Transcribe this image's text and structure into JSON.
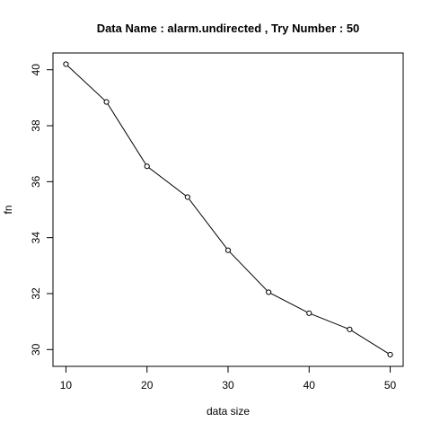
{
  "chart_data": {
    "type": "line",
    "title": "Data Name :  alarm.undirected , Try Number :  50",
    "xlabel": "data size",
    "ylabel": "fn",
    "x": [
      10,
      15,
      20,
      25,
      30,
      35,
      40,
      45,
      50
    ],
    "series": [
      {
        "values": [
          40.2,
          38.85,
          36.55,
          35.45,
          33.55,
          32.05,
          31.3,
          30.72,
          29.82
        ]
      }
    ],
    "xlim": [
      8.4,
      51.6
    ],
    "ylim": [
      29.4,
      40.6
    ],
    "xticks": [
      10,
      20,
      30,
      40,
      50
    ],
    "yticks": [
      30,
      32,
      34,
      36,
      38,
      40
    ],
    "grid": false,
    "legend": false,
    "marker": "open-circle",
    "line_color": "#000000"
  }
}
